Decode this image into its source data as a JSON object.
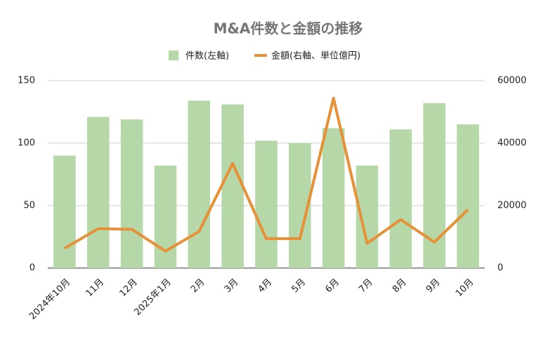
{
  "chart_data": {
    "type": "combo",
    "title": "M&A件数と金額の推移",
    "categories": [
      "2024年10月",
      "11月",
      "12月",
      "2025年1月",
      "2月",
      "3月",
      "4月",
      "5月",
      "6月",
      "7月",
      "8月",
      "9月",
      "10月"
    ],
    "series": [
      {
        "name": "件数(左軸)",
        "type": "bar",
        "color": "#b6d7a8",
        "values": [
          90,
          121,
          119,
          82,
          134,
          131,
          102,
          100,
          112,
          82,
          111,
          132,
          115
        ]
      },
      {
        "name": "金額(右軸、単位億円)",
        "type": "line",
        "axis": "y2",
        "color": "#e69138",
        "values": [
          6300,
          12600,
          12400,
          5400,
          11700,
          33500,
          9400,
          9400,
          54400,
          7900,
          15500,
          8300,
          18700
        ]
      }
    ],
    "ylim": [
      0,
      150
    ],
    "yticks": [
      0,
      50,
      100,
      150
    ],
    "y2lim": [
      0,
      60000
    ],
    "y2ticks": [
      0,
      20000,
      40000,
      60000
    ],
    "grid": true,
    "legend": "top"
  }
}
